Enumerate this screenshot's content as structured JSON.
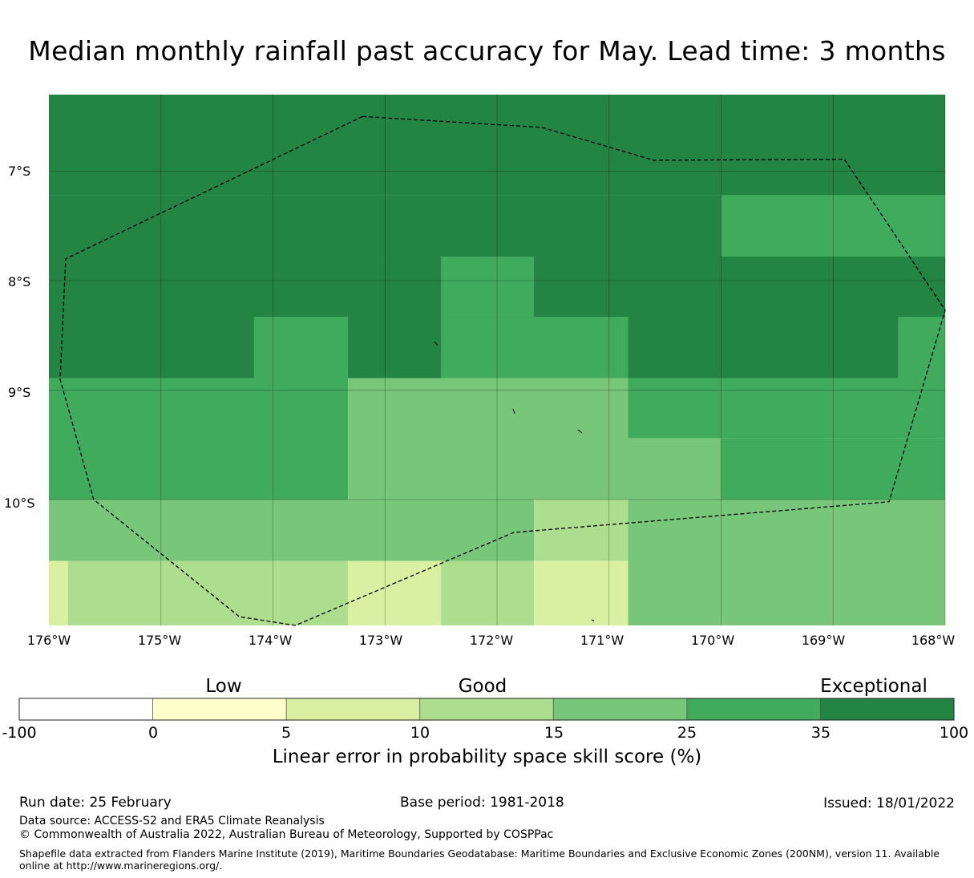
{
  "title": "Median monthly rainfall past accuracy for May. Lead time: 3 months",
  "map": {
    "lat_labels": [
      "7°S",
      "8°S",
      "9°S",
      "10°S"
    ],
    "lon_labels": [
      "176°W",
      "175°W",
      "174°W",
      "173°W",
      "172°W",
      "171°W",
      "170°W",
      "169°W",
      "168°W"
    ],
    "region": {
      "lon_range": [
        -176,
        -168
      ],
      "lat_range": [
        -11.15,
        -6.3
      ]
    },
    "skill_grid": {
      "units": "%",
      "description": "grid-cell skill score classes (LEPS %), rows north to south",
      "cells": [
        {
          "lon": [
            -176,
            -170
          ],
          "lat": [
            -7.22,
            -6.3
          ],
          "class": "35-100"
        },
        {
          "lon": [
            -170,
            -168
          ],
          "lat": [
            -7.22,
            -6.3
          ],
          "class": "35-100"
        },
        {
          "lon": [
            -170,
            -168
          ],
          "lat": [
            -7.78,
            -7.22
          ],
          "class": "25-35"
        },
        {
          "lon": [
            -176,
            -170
          ],
          "lat": [
            -7.78,
            -7.22
          ],
          "class": "35-100"
        },
        {
          "lon": [
            -172.5,
            -171.67
          ],
          "lat": [
            -8.33,
            -7.78
          ],
          "class": "25-35"
        },
        {
          "lon": [
            -176,
            -168
          ],
          "lat": [
            -8.89,
            -7.78
          ],
          "class": "35-100"
        },
        {
          "lon": [
            -174.17,
            -173.33
          ],
          "lat": [
            -8.89,
            -8.33
          ],
          "class": "25-35"
        },
        {
          "lon": [
            -172.5,
            -170.83
          ],
          "lat": [
            -8.89,
            -8.33
          ],
          "class": "25-35"
        },
        {
          "lon": [
            -168.42,
            -168
          ],
          "lat": [
            -8.89,
            -8.33
          ],
          "class": "25-35"
        },
        {
          "lon": [
            -176,
            -173.33
          ],
          "lat": [
            -10.0,
            -8.89
          ],
          "class": "25-35"
        },
        {
          "lon": [
            -173.33,
            -170.83
          ],
          "lat": [
            -10.0,
            -8.89
          ],
          "class": "15-25"
        },
        {
          "lon": [
            -170.83,
            -168
          ],
          "lat": [
            -9.44,
            -8.89
          ],
          "class": "25-35"
        },
        {
          "lon": [
            -170.83,
            -170.0
          ],
          "lat": [
            -10.0,
            -9.44
          ],
          "class": "15-25"
        },
        {
          "lon": [
            -170.0,
            -168
          ],
          "lat": [
            -10.0,
            -9.44
          ],
          "class": "25-35"
        },
        {
          "lon": [
            -176,
            -171.67
          ],
          "lat": [
            -10.56,
            -10.0
          ],
          "class": "15-25"
        },
        {
          "lon": [
            -171.67,
            -170.83
          ],
          "lat": [
            -10.56,
            -10.0
          ],
          "class": "10-15"
        },
        {
          "lon": [
            -170.83,
            -168
          ],
          "lat": [
            -11.15,
            -10.0
          ],
          "class": "15-25"
        },
        {
          "lon": [
            -176,
            -175.83
          ],
          "lat": [
            -11.15,
            -10.56
          ],
          "class": "5-10"
        },
        {
          "lon": [
            -175.83,
            -173.33
          ],
          "lat": [
            -11.15,
            -10.56
          ],
          "class": "10-15"
        },
        {
          "lon": [
            -173.33,
            -172.5
          ],
          "lat": [
            -11.15,
            -10.56
          ],
          "class": "5-10"
        },
        {
          "lon": [
            -172.5,
            -171.67
          ],
          "lat": [
            -11.15,
            -10.56
          ],
          "class": "10-15"
        },
        {
          "lon": [
            -171.67,
            -170.83
          ],
          "lat": [
            -11.15,
            -10.56
          ],
          "class": "5-10"
        }
      ]
    },
    "eez_boundary": [
      [
        -173.2,
        -6.5
      ],
      [
        -171.6,
        -6.6
      ],
      [
        -170.6,
        -6.9
      ],
      [
        -168.9,
        -6.89
      ],
      [
        -168.5,
        -7.5
      ],
      [
        -168.0,
        -8.27
      ],
      [
        -168.5,
        -10.02
      ],
      [
        -171.85,
        -10.3
      ],
      [
        -173.8,
        -11.15
      ],
      [
        -174.3,
        -11.07
      ],
      [
        -175.6,
        -10.0
      ],
      [
        -175.9,
        -8.9
      ],
      [
        -175.85,
        -7.8
      ],
      [
        -173.2,
        -6.5
      ]
    ]
  },
  "colorbar": {
    "category_labels": [
      "Low",
      "Good",
      "Exceptional"
    ],
    "ticks": [
      "-100",
      "0",
      "5",
      "10",
      "15",
      "25",
      "35",
      "100"
    ],
    "colors": [
      "#ffffff",
      "#ffffcc",
      "#d9f0a3",
      "#addd8e",
      "#78c679",
      "#41ab5d",
      "#238443"
    ],
    "axis_label": "Linear error in probability space skill score (%)"
  },
  "footer": {
    "run_date": "Run date: 25 February",
    "base_period": "Base period: 1981-2018",
    "issued": "Issued: 18/01/2022",
    "data_source": "Data source: ACCESS-S2 and ERA5 Climate Reanalysis",
    "copyright": "© Commonwealth of Australia 2022, Australian Bureau of Meteorology, Supported by COSPPac",
    "shapefile_note": "Shapefile data extracted from Flanders Marine Institute (2019), Maritime Boundaries Geodatabase: Maritime Boundaries and Exclusive Economic Zones (200NM), version 11. Available online at http://www.marineregions.org/."
  }
}
